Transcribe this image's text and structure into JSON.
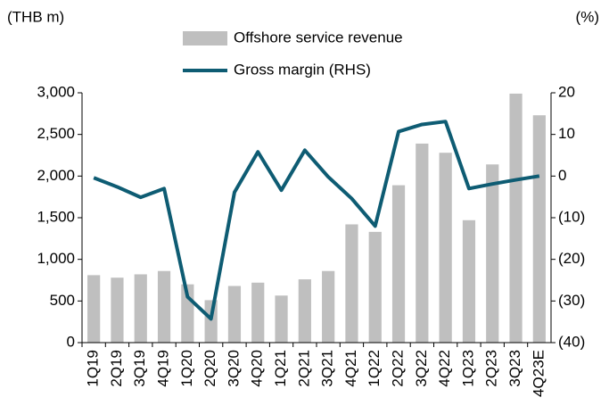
{
  "chart_data": {
    "type": "bar",
    "ylabel": "(THB m)",
    "y2label": "(%)",
    "categories": [
      "1Q19",
      "2Q19",
      "3Q19",
      "4Q19",
      "1Q20",
      "2Q20",
      "3Q20",
      "4Q20",
      "1Q21",
      "2Q21",
      "3Q21",
      "4Q21",
      "1Q22",
      "2Q22",
      "3Q22",
      "4Q22",
      "1Q23",
      "2Q23",
      "3Q23",
      "4Q23E"
    ],
    "series": [
      {
        "name": "Offshore service revenue",
        "type": "bar",
        "color": "#bfbfbf",
        "values": [
          810,
          780,
          820,
          860,
          700,
          510,
          680,
          720,
          565,
          760,
          860,
          1420,
          1330,
          1890,
          2390,
          2280,
          1470,
          2140,
          2990,
          2730
        ]
      },
      {
        "name": "Gross margin (RHS)",
        "type": "line",
        "axis": "y2",
        "color": "#0e5c73",
        "values": [
          -0.4,
          -2.6,
          -5.1,
          -3,
          -29,
          -34.3,
          -3.9,
          5.8,
          -3.4,
          6.2,
          -0.2,
          -5.4,
          -12,
          10.7,
          12.4,
          13.1,
          -3,
          -1.9,
          -0.9,
          0
        ]
      }
    ],
    "ylim": [
      0,
      3000
    ],
    "yticks": [
      0,
      500,
      {
        "value": 1000,
        "label": "1,000"
      },
      {
        "value": 1500,
        "label": "1,500"
      },
      {
        "value": 2000,
        "label": "2,000"
      },
      {
        "value": 2500,
        "label": "2,500"
      },
      {
        "value": 3000,
        "label": "3,000"
      }
    ],
    "y2lim": [
      -40,
      20
    ],
    "y2ticks": [
      {
        "value": -40,
        "label": "(40)"
      },
      {
        "value": -30,
        "label": "(30)"
      },
      {
        "value": -20,
        "label": "(20)"
      },
      {
        "value": -10,
        "label": "(10)"
      },
      0,
      10,
      20
    ]
  }
}
